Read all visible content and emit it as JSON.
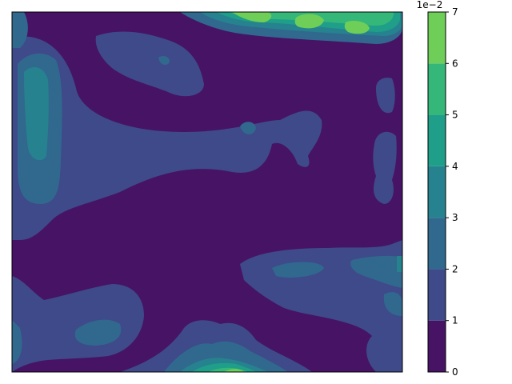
{
  "chart_data": {
    "type": "heatmap",
    "subtype": "filled-contour",
    "title": "",
    "xlabel": "",
    "ylabel": "",
    "show_axis_ticks": false,
    "colormap": "viridis",
    "grid": false,
    "colorbar": {
      "levels": [
        0,
        1,
        2,
        3,
        4,
        5,
        6,
        7
      ],
      "tick_labels": [
        "0",
        "1",
        "2",
        "3",
        "4",
        "5",
        "6",
        "7"
      ],
      "offset_text": "1e−2",
      "level_colors": [
        "#471365",
        "#3e4a89",
        "#31688e",
        "#26828e",
        "#1f9e89",
        "#35b779",
        "#6ece58",
        "#cde11d"
      ]
    }
  }
}
